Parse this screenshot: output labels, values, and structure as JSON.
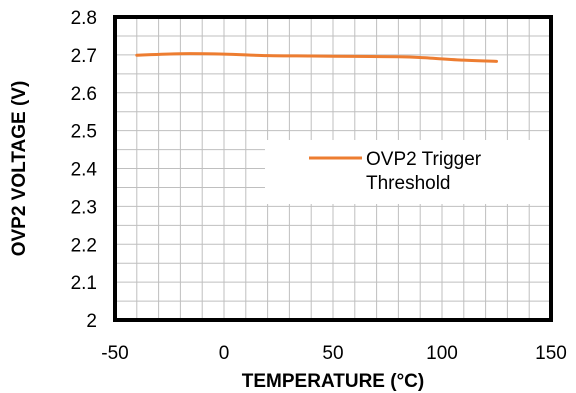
{
  "chart_data": {
    "type": "line",
    "xlabel": "TEMPERATURE (°C)",
    "ylabel": "OVP2 VOLTAGE (V)",
    "xlim": [
      -50,
      150
    ],
    "ylim": [
      2,
      2.8
    ],
    "x_ticks": [
      -50,
      0,
      50,
      100,
      150
    ],
    "y_ticks": [
      2,
      2.1,
      2.2,
      2.3,
      2.4,
      2.5,
      2.6,
      2.7,
      2.8
    ],
    "x_tick_labels": [
      "-50",
      "0",
      "50",
      "100",
      "150"
    ],
    "y_tick_labels": [
      "2",
      "2.1",
      "2.2",
      "2.3",
      "2.4",
      "2.5",
      "2.6",
      "2.7",
      "2.8"
    ],
    "x_minor_step": 10,
    "y_minor_step": 0.05,
    "grid": true,
    "legend_position": "center-right",
    "series": [
      {
        "name": "OVP2 Trigger Threshold",
        "color": "#ED7D31",
        "x": [
          -40,
          -20,
          0,
          20,
          40,
          60,
          80,
          90,
          110,
          125
        ],
        "y": [
          2.699,
          2.703,
          2.702,
          2.698,
          2.697,
          2.696,
          2.695,
          2.693,
          2.686,
          2.683
        ]
      }
    ]
  }
}
